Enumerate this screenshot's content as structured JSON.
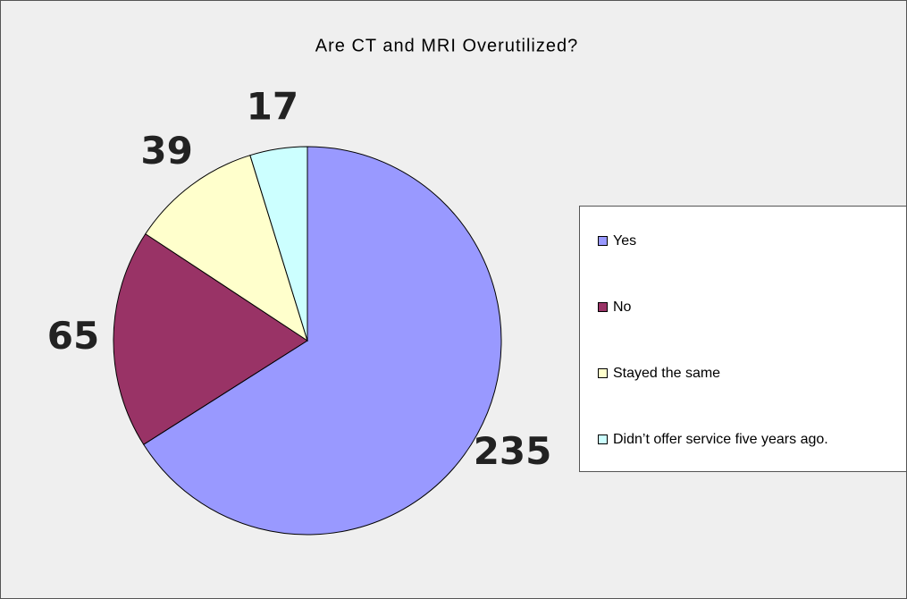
{
  "chart_data": {
    "type": "pie",
    "title": "Are CT and MRI Overutilized?",
    "categories": [
      "Yes",
      "No",
      "Stayed the same",
      "Didn’t offer service five years ago."
    ],
    "values": [
      235,
      65,
      39,
      17
    ],
    "colors": [
      "#9999ff",
      "#993366",
      "#ffffcc",
      "#ccffff"
    ],
    "legend": "right"
  }
}
